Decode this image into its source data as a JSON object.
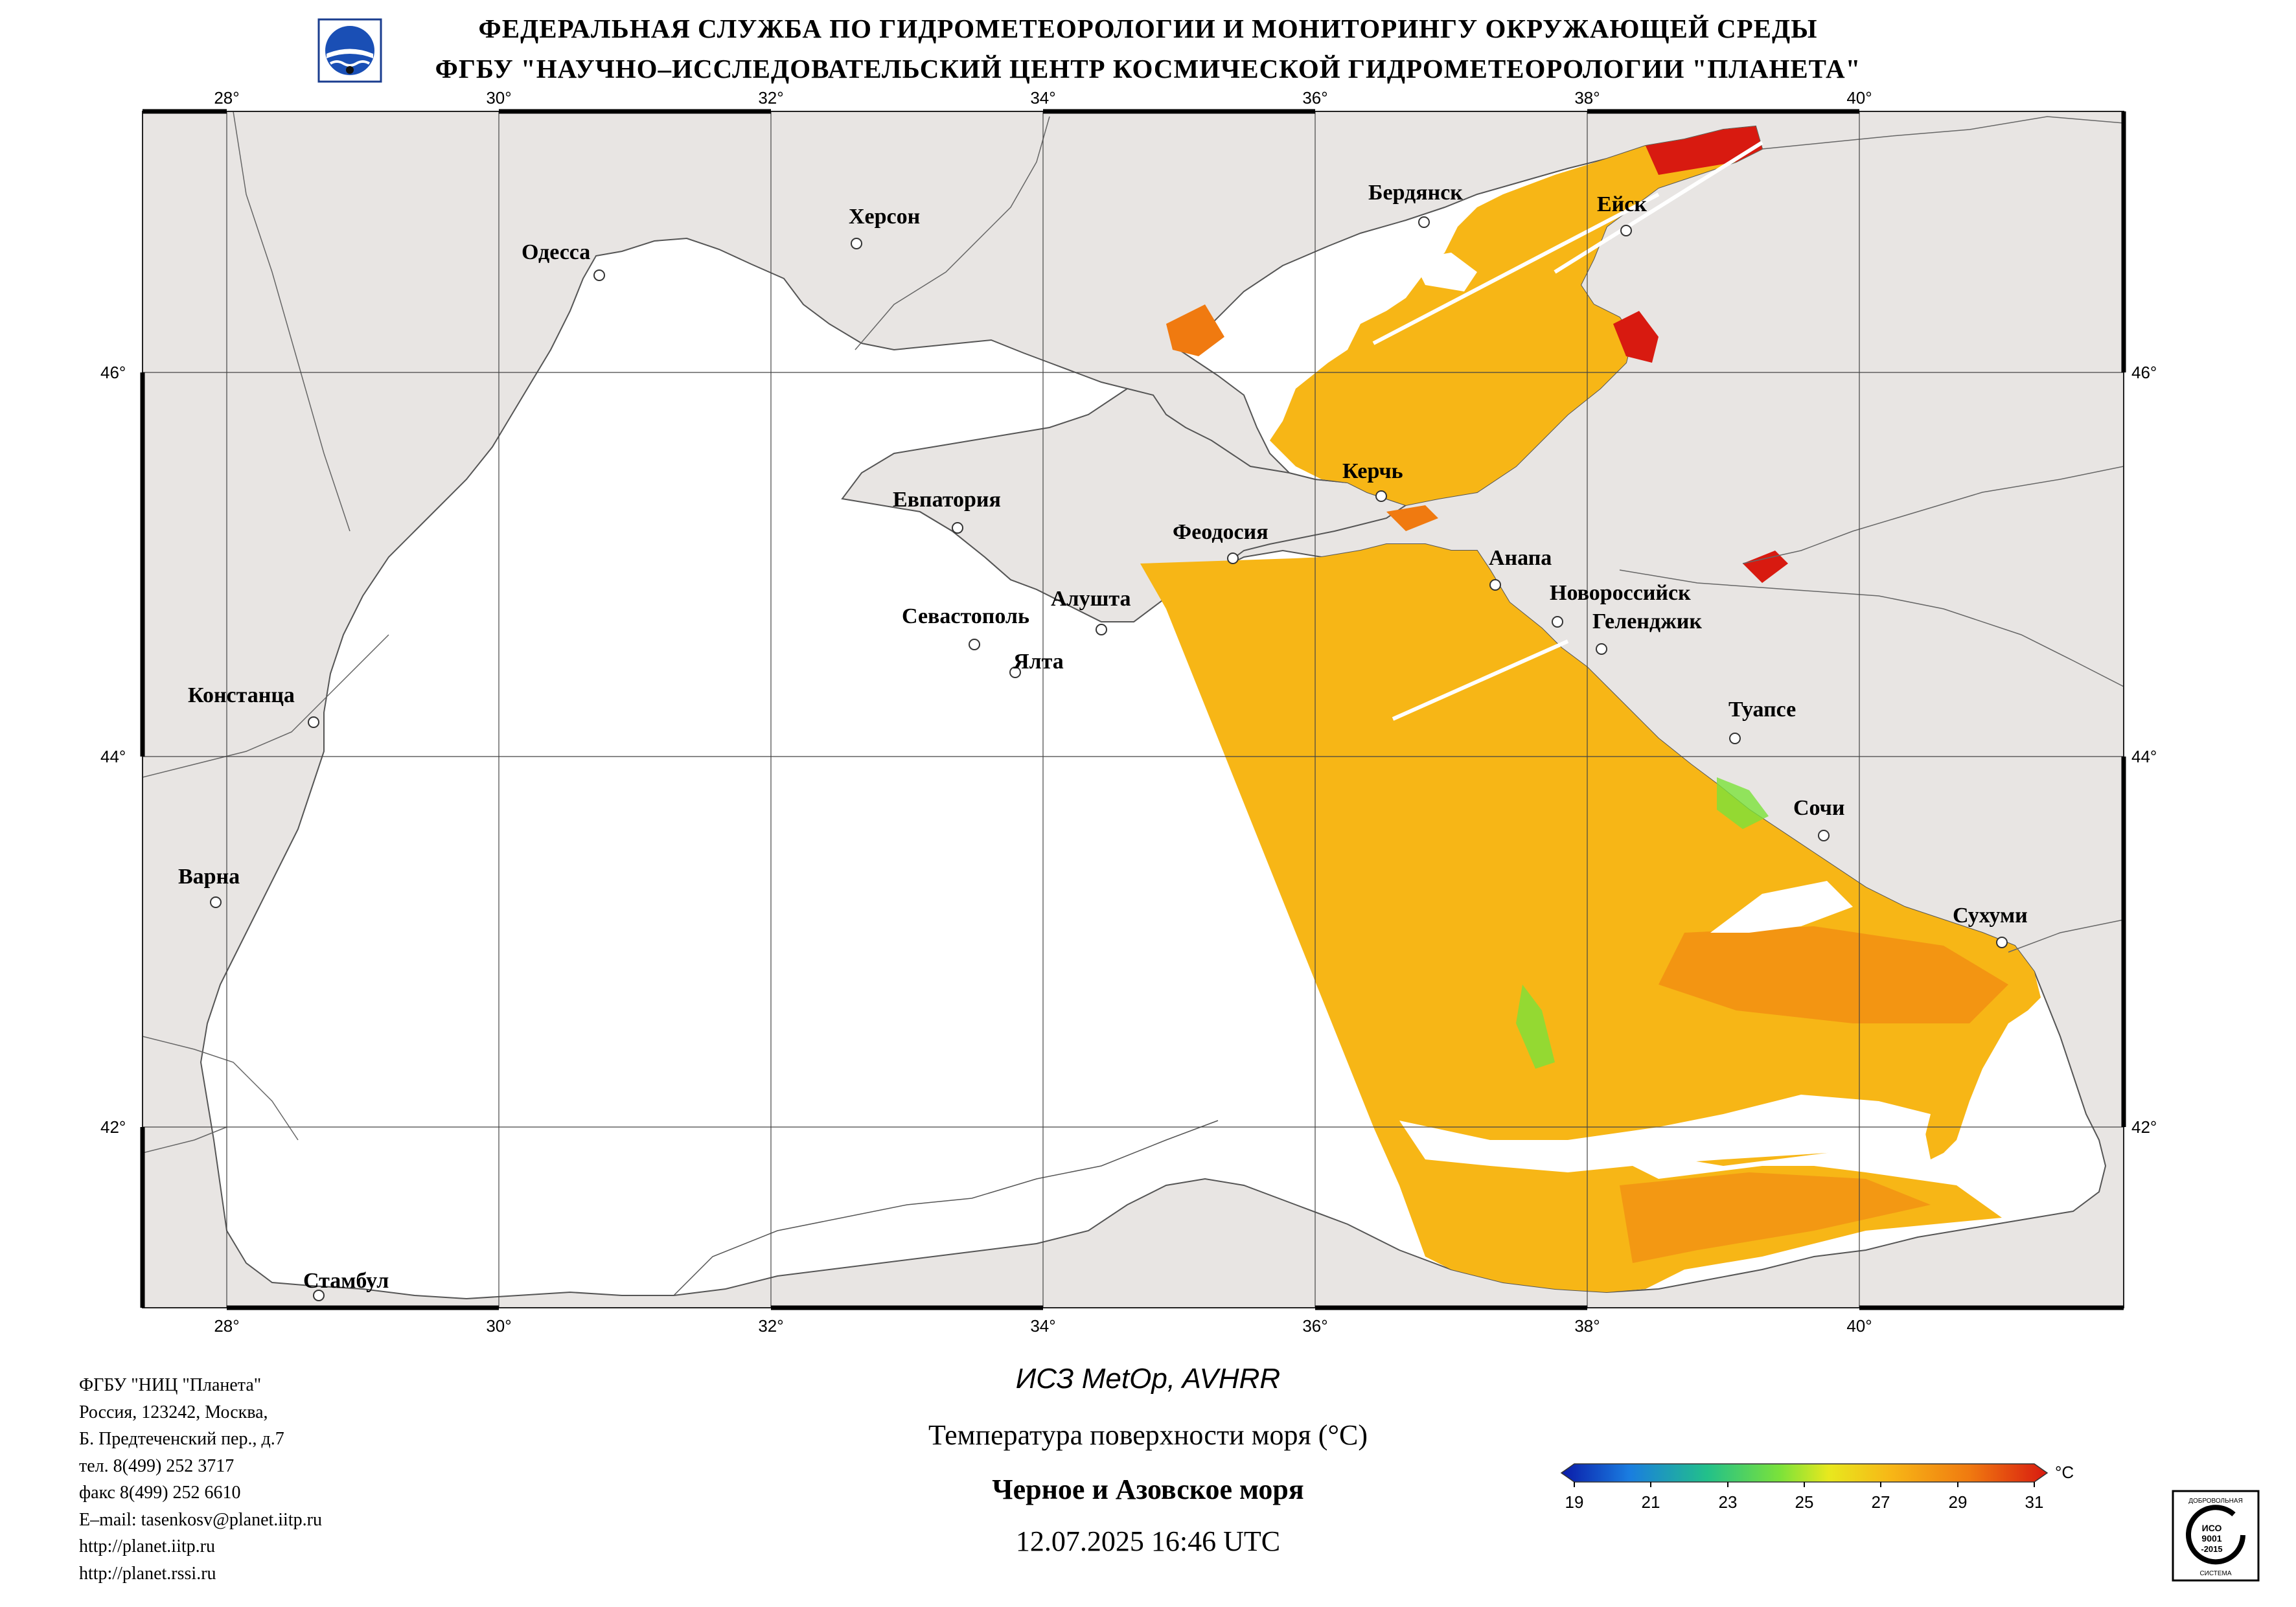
{
  "header": {
    "line1": "ФЕДЕРАЛЬНАЯ СЛУЖБА ПО ГИДРОМЕТЕОРОЛОГИИ И МОНИТОРИНГУ ОКРУЖАЮЩЕЙ СРЕДЫ",
    "line2": "ФГБУ \"НАУЧНО–ИССЛЕДОВАТЕЛЬСКИЙ ЦЕНТР КОСМИЧЕСКОЙ ГИДРОМЕТЕОРОЛОГИИ \"ПЛАНЕТА\""
  },
  "map": {
    "lon_labels": [
      "28°",
      "30°",
      "32°",
      "34°",
      "36°",
      "38°",
      "40°"
    ],
    "lat_labels": [
      "46°",
      "44°",
      "42°"
    ],
    "cities": [
      {
        "name": "Херсон"
      },
      {
        "name": "Одесса"
      },
      {
        "name": "Бердянск"
      },
      {
        "name": "Ейск"
      },
      {
        "name": "Керчь"
      },
      {
        "name": "Евпатория"
      },
      {
        "name": "Феодосия"
      },
      {
        "name": "Анапа"
      },
      {
        "name": "Новороссийск"
      },
      {
        "name": "Геленджик"
      },
      {
        "name": "Севастополь"
      },
      {
        "name": "Алушта"
      },
      {
        "name": "Ялта"
      },
      {
        "name": "Констанца"
      },
      {
        "name": "Туапсе"
      },
      {
        "name": "Сочи"
      },
      {
        "name": "Варна"
      },
      {
        "name": "Сухуми"
      },
      {
        "name": "Стамбул"
      }
    ],
    "colors": {
      "land": "#e8e5e3",
      "sea": "#ffffff",
      "sst_main": "#f7b616"
    }
  },
  "footer": {
    "org": "ФГБУ \"НИЦ \"Планета\"",
    "addr1": "Россия, 123242, Москва,",
    "addr2": "Б. Предтеченский пер., д.7",
    "tel": "тел. 8(499) 252 3717",
    "fax": "факс 8(499) 252 6610",
    "email": "E–mail: tasenkosv@planet.iitp.ru",
    "url1": "http://planet.iitp.ru",
    "url2": "http://planet.rssi.ru",
    "satellite": "ИСЗ MetOp, AVHRR",
    "product": "Температура поверхности моря (°C)",
    "region": "Черное и Азовское моря",
    "datetime": "12.07.2025 16:46 UTC"
  },
  "colorbar": {
    "ticks": [
      "19",
      "21",
      "23",
      "25",
      "27",
      "29",
      "31"
    ],
    "unit": "°C",
    "stops": [
      "#0a1aa8",
      "#1a7de0",
      "#22c08a",
      "#7be23a",
      "#e8e81e",
      "#f7b616",
      "#f07a10",
      "#d81a10"
    ]
  },
  "iso_badge": {
    "top": "ДОБРОВОЛЬНАЯ",
    "center1": "ИСО",
    "center2": "9001",
    "center3": "-2015",
    "bottom": "СИСТЕМА"
  }
}
